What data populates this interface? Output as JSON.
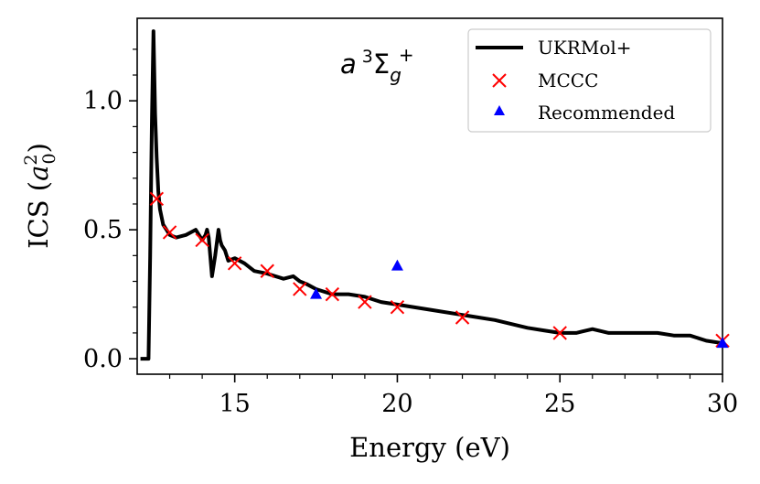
{
  "chart_data": {
    "type": "line",
    "title": "",
    "annotation": {
      "italic": "a",
      "superscript": "3",
      "symbol": "Σ",
      "sub": "g",
      "sup": "+"
    },
    "xlabel": "Energy (eV)",
    "ylabel": {
      "main": "ICS (",
      "var": "a",
      "sub": "0",
      "sup": "2",
      "close": ")"
    },
    "xlim": [
      12.0,
      30.0
    ],
    "ylim": [
      -0.06,
      1.32
    ],
    "xticks": [
      15,
      20,
      25,
      30
    ],
    "xtick_labels": [
      "15",
      "20",
      "25",
      "30"
    ],
    "yticks": [
      0.0,
      0.5,
      1.0
    ],
    "ytick_labels": [
      "0.0",
      "0.5",
      "1.0"
    ],
    "grid": false,
    "legend_position": "top-right",
    "series": [
      {
        "name": "UKRMol+",
        "kind": "line",
        "color": "#000000",
        "x": [
          12.1,
          12.35,
          12.4,
          12.45,
          12.5,
          12.55,
          12.6,
          12.65,
          12.7,
          12.8,
          12.9,
          13.0,
          13.2,
          13.5,
          13.8,
          14.0,
          14.1,
          14.15,
          14.2,
          14.3,
          14.4,
          14.5,
          14.55,
          14.6,
          14.7,
          14.8,
          15.0,
          15.3,
          15.6,
          16.0,
          16.5,
          16.8,
          17.0,
          17.2,
          17.5,
          18.0,
          18.5,
          19.0,
          19.5,
          20.0,
          21.0,
          22.0,
          23.0,
          24.0,
          24.5,
          25.0,
          25.5,
          26.0,
          26.5,
          27.0,
          28.0,
          28.5,
          29.0,
          29.5,
          30.0
        ],
        "y": [
          0.0,
          0.0,
          0.4,
          0.9,
          1.27,
          0.95,
          0.78,
          0.65,
          0.58,
          0.52,
          0.5,
          0.48,
          0.47,
          0.48,
          0.5,
          0.46,
          0.48,
          0.5,
          0.47,
          0.32,
          0.4,
          0.5,
          0.46,
          0.44,
          0.42,
          0.38,
          0.39,
          0.37,
          0.34,
          0.33,
          0.31,
          0.32,
          0.3,
          0.29,
          0.27,
          0.25,
          0.25,
          0.24,
          0.22,
          0.21,
          0.19,
          0.17,
          0.15,
          0.12,
          0.11,
          0.1,
          0.1,
          0.115,
          0.1,
          0.1,
          0.1,
          0.09,
          0.09,
          0.07,
          0.06
        ]
      },
      {
        "name": "MCCC",
        "kind": "x-marker",
        "color": "#ff0000",
        "x": [
          12.6,
          13.0,
          14.0,
          15.0,
          16.0,
          17.0,
          18.0,
          19.0,
          20.0,
          22.0,
          25.0,
          30.0
        ],
        "y": [
          0.62,
          0.49,
          0.46,
          0.37,
          0.34,
          0.27,
          0.25,
          0.22,
          0.2,
          0.16,
          0.1,
          0.07
        ]
      },
      {
        "name": "Recommended",
        "kind": "triangle-marker",
        "color": "#0000ff",
        "x": [
          17.5,
          20.0,
          30.0
        ],
        "y": [
          0.25,
          0.36,
          0.06
        ]
      }
    ]
  }
}
